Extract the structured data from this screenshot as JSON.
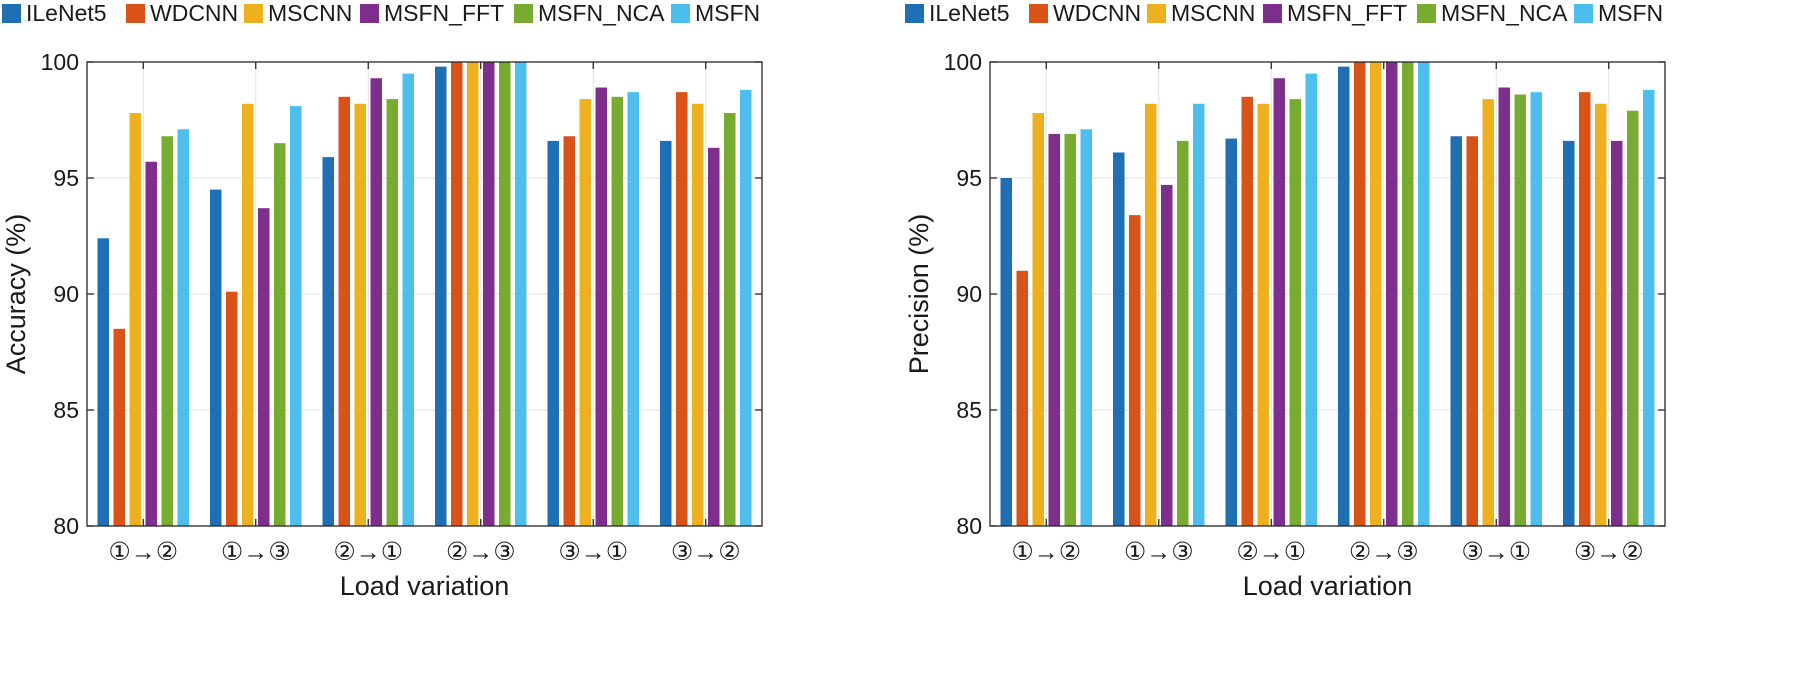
{
  "chart_data": [
    {
      "type": "bar",
      "title": "",
      "xlabel": "Load variation",
      "ylabel": "Accuracy (%)",
      "ylim": [
        80,
        100
      ],
      "yticks": [
        "80",
        "85",
        "90",
        "95",
        "100"
      ],
      "ytick_values": [
        80,
        85,
        90,
        95,
        100
      ],
      "grid": true,
      "legend_position": "top",
      "categories": [
        "①→②",
        "①→③",
        "②→①",
        "②→③",
        "③→①",
        "③→②"
      ],
      "series": [
        {
          "name": "ILeNet5",
          "color": "#1f6fb5",
          "values": [
            92.4,
            94.5,
            95.9,
            99.8,
            96.6,
            96.6
          ]
        },
        {
          "name": "WDCNN",
          "color": "#d95319",
          "values": [
            88.5,
            90.1,
            98.5,
            100,
            96.8,
            98.7
          ]
        },
        {
          "name": "MSCNN",
          "color": "#edb120",
          "values": [
            97.8,
            98.2,
            98.2,
            100,
            98.4,
            98.2
          ]
        },
        {
          "name": "MSFN_FFT",
          "color": "#7e2f8e",
          "values": [
            95.7,
            93.7,
            99.3,
            100,
            98.9,
            96.3
          ]
        },
        {
          "name": "MSFN_NCA",
          "color": "#77ac30",
          "values": [
            96.8,
            96.5,
            98.4,
            100,
            98.5,
            97.8
          ]
        },
        {
          "name": "MSFN",
          "color": "#4dbeee",
          "values": [
            97.1,
            98.1,
            99.5,
            100,
            98.7,
            98.8
          ]
        }
      ]
    },
    {
      "type": "bar",
      "title": "",
      "xlabel": "Load variation",
      "ylabel": "Precision (%)",
      "ylim": [
        80,
        100
      ],
      "yticks": [
        "80",
        "85",
        "90",
        "95",
        "100"
      ],
      "ytick_values": [
        80,
        85,
        90,
        95,
        100
      ],
      "grid": true,
      "legend_position": "top",
      "categories": [
        "①→②",
        "①→③",
        "②→①",
        "②→③",
        "③→①",
        "③→②"
      ],
      "series": [
        {
          "name": "ILeNet5",
          "color": "#1f6fb5",
          "values": [
            95.0,
            96.1,
            96.7,
            99.8,
            96.8,
            96.6
          ]
        },
        {
          "name": "WDCNN",
          "color": "#d95319",
          "values": [
            91.0,
            93.4,
            98.5,
            100,
            96.8,
            98.7
          ]
        },
        {
          "name": "MSCNN",
          "color": "#edb120",
          "values": [
            97.8,
            98.2,
            98.2,
            100,
            98.4,
            98.2
          ]
        },
        {
          "name": "MSFN_FFT",
          "color": "#7e2f8e",
          "values": [
            96.9,
            94.7,
            99.3,
            100,
            98.9,
            96.6
          ]
        },
        {
          "name": "MSFN_NCA",
          "color": "#77ac30",
          "values": [
            96.9,
            96.6,
            98.4,
            100,
            98.6,
            97.9
          ]
        },
        {
          "name": "MSFN",
          "color": "#4dbeee",
          "values": [
            97.1,
            98.2,
            99.5,
            100,
            98.7,
            98.8
          ]
        }
      ]
    }
  ]
}
